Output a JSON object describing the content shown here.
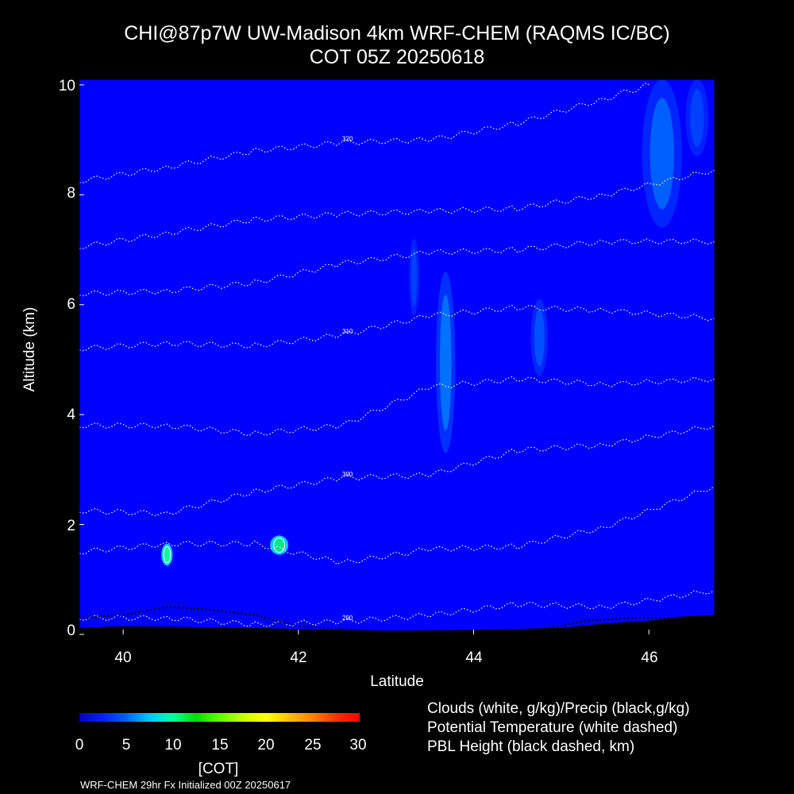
{
  "chart_data": {
    "type": "contour",
    "title": "CHI@87p7W UW-Madison 4km WRF-CHEM (RAQMS IC/BC)",
    "subtitle": "COT 05Z 20250618",
    "xlabel": "Latitude",
    "ylabel": "Altitude (km)",
    "xlim": [
      39.5,
      46.75
    ],
    "ylim": [
      0,
      10.1
    ],
    "xticks": [
      "40",
      "42",
      "44",
      "46"
    ],
    "yticks": [
      "0",
      "2",
      "4",
      "6",
      "8",
      "10"
    ],
    "field": "COT",
    "background_value": 0,
    "cloud_features": [
      {
        "lat": 40.5,
        "alt_bottom": 1.25,
        "alt_top": 1.65,
        "peak_cot": 7
      },
      {
        "lat": 41.78,
        "alt_bottom": 1.45,
        "alt_top": 1.8,
        "peak_cot": 8
      },
      {
        "lat": 43.32,
        "alt_bottom": 5.8,
        "alt_top": 7.2,
        "peak_cot": 1
      },
      {
        "lat": 43.68,
        "alt_bottom": 3.3,
        "alt_top": 6.6,
        "peak_cot": 3
      },
      {
        "lat": 44.75,
        "alt_bottom": 4.7,
        "alt_top": 6.1,
        "peak_cot": 2
      },
      {
        "lat": 46.15,
        "alt_bottom": 7.4,
        "alt_top": 10.1,
        "peak_cot": 3
      },
      {
        "lat": 46.55,
        "alt_bottom": 8.7,
        "alt_top": 10.1,
        "peak_cot": 1
      }
    ],
    "theta_lines": [
      {
        "label": "320",
        "points": [
          [
            39.5,
            8.25
          ],
          [
            40.5,
            8.5
          ],
          [
            41.5,
            8.8
          ],
          [
            42.5,
            8.95
          ],
          [
            43.5,
            9.0
          ],
          [
            44.5,
            9.3
          ],
          [
            45.5,
            9.75
          ],
          [
            46,
            10.0
          ]
        ]
      },
      {
        "label": "",
        "points": [
          [
            39.5,
            7.05
          ],
          [
            40.5,
            7.3
          ],
          [
            41.5,
            7.55
          ],
          [
            42.5,
            7.65
          ],
          [
            43.5,
            7.7
          ],
          [
            44.5,
            7.75
          ],
          [
            45.5,
            8.0
          ],
          [
            46.75,
            8.45
          ]
        ]
      },
      {
        "label": "",
        "points": [
          [
            39.5,
            6.2
          ],
          [
            40.5,
            6.25
          ],
          [
            41.5,
            6.4
          ],
          [
            42.5,
            6.75
          ],
          [
            43.5,
            6.95
          ],
          [
            44.5,
            7.0
          ],
          [
            45.5,
            7.15
          ],
          [
            46.75,
            7.15
          ]
        ]
      },
      {
        "label": "310",
        "points": [
          [
            39.5,
            5.2
          ],
          [
            40.5,
            5.3
          ],
          [
            41.5,
            5.25
          ],
          [
            42.5,
            5.45
          ],
          [
            43.5,
            5.8
          ],
          [
            44.5,
            5.95
          ],
          [
            45.5,
            5.9
          ],
          [
            46.75,
            5.75
          ]
        ]
      },
      {
        "label": "",
        "points": [
          [
            39.5,
            3.8
          ],
          [
            40.5,
            3.8
          ],
          [
            41.5,
            3.65
          ],
          [
            42.5,
            3.8
          ],
          [
            43.5,
            4.5
          ],
          [
            44.5,
            4.65
          ],
          [
            45.5,
            4.55
          ],
          [
            46.75,
            4.65
          ]
        ]
      },
      {
        "label": "300",
        "points": [
          [
            39.5,
            2.25
          ],
          [
            40.5,
            2.2
          ],
          [
            41.5,
            2.6
          ],
          [
            42.5,
            2.85
          ],
          [
            43.5,
            2.9
          ],
          [
            44.5,
            3.35
          ],
          [
            45.5,
            3.45
          ],
          [
            46.75,
            3.8
          ]
        ]
      },
      {
        "label": "",
        "points": [
          [
            39.5,
            1.5
          ],
          [
            40.5,
            1.65
          ],
          [
            41.5,
            1.65
          ],
          [
            42.5,
            1.3
          ],
          [
            43.5,
            1.55
          ],
          [
            44.5,
            1.6
          ],
          [
            45.5,
            1.95
          ],
          [
            46.75,
            2.7
          ]
        ]
      },
      {
        "label": "290",
        "points": [
          [
            39.5,
            0.3
          ],
          [
            40.5,
            0.3
          ],
          [
            41.5,
            0.18
          ],
          [
            42.5,
            0.23
          ],
          [
            43.5,
            0.35
          ],
          [
            44.5,
            0.55
          ],
          [
            45.5,
            0.5
          ],
          [
            46.75,
            0.8
          ]
        ]
      }
    ],
    "pbl_height": [
      [
        39.5,
        0.3
      ],
      [
        40.0,
        0.35
      ],
      [
        40.5,
        0.5
      ],
      [
        41.0,
        0.45
      ],
      [
        41.5,
        0.35
      ],
      [
        42.0,
        0.15
      ],
      [
        42.5,
        0.1
      ],
      [
        43.0,
        0.05
      ],
      [
        44.0,
        0.05
      ],
      [
        44.8,
        0.1
      ],
      [
        45.3,
        0.25
      ],
      [
        45.8,
        0.3
      ],
      [
        46.4,
        0.3
      ],
      [
        46.75,
        0.3
      ]
    ],
    "terrain_height": [
      [
        39.5,
        0.12
      ],
      [
        40.0,
        0.15
      ],
      [
        41.0,
        0.13
      ],
      [
        42.0,
        0.1
      ],
      [
        43.0,
        0.07
      ],
      [
        44.0,
        0.08
      ],
      [
        45.0,
        0.12
      ],
      [
        45.5,
        0.2
      ],
      [
        46.0,
        0.25
      ],
      [
        46.4,
        0.33
      ],
      [
        46.75,
        0.35
      ]
    ],
    "colorbar": {
      "label": "[COT]",
      "min": 0,
      "max": 30,
      "ticks": [
        "0",
        "5",
        "10",
        "15",
        "20",
        "25",
        "30"
      ]
    }
  },
  "legend": [
    "Clouds (white, g/kg)/Precip (black,g/kg)",
    "Potential Temperature (white dashed)",
    "PBL Height (black dashed, km)"
  ],
  "footer": "WRF-CHEM 29hr  Fx Initialized 00Z 20250617"
}
